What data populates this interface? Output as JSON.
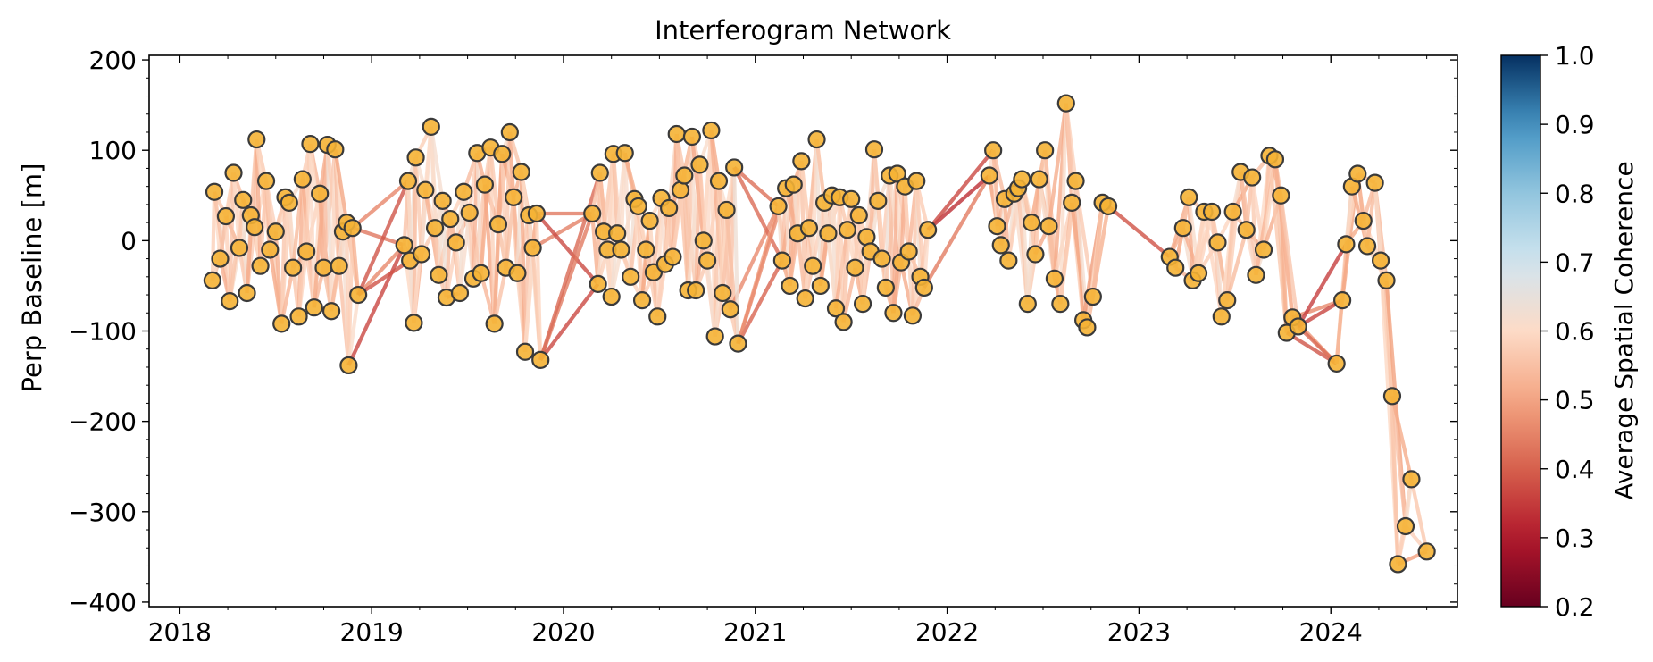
{
  "chart_data": {
    "type": "scatter",
    "title": "Interferogram Network",
    "xlabel": "",
    "ylabel": "Perp Baseline [m]",
    "x_unit": "year",
    "xlim": [
      2017.84,
      2024.66
    ],
    "ylim": [
      -405,
      205
    ],
    "x_ticks": [
      {
        "value": 2018,
        "label": "2018"
      },
      {
        "value": 2019,
        "label": "2019"
      },
      {
        "value": 2020,
        "label": "2020"
      },
      {
        "value": 2021,
        "label": "2021"
      },
      {
        "value": 2022,
        "label": "2022"
      },
      {
        "value": 2023,
        "label": "2023"
      },
      {
        "value": 2024,
        "label": "2024"
      }
    ],
    "y_ticks": [
      {
        "value": 200,
        "label": "200"
      },
      {
        "value": 100,
        "label": "100"
      },
      {
        "value": 0,
        "label": "0"
      },
      {
        "value": -100,
        "label": "−100"
      },
      {
        "value": -200,
        "label": "−200"
      },
      {
        "value": -300,
        "label": "−300"
      },
      {
        "value": -400,
        "label": "−400"
      }
    ],
    "grid": false,
    "marker_color": "#f5b335",
    "marker_edge_color": "#3a3a3a",
    "acquisitions": [
      {
        "x": 2018.17,
        "y": -44
      },
      {
        "x": 2018.18,
        "y": 54
      },
      {
        "x": 2018.21,
        "y": -20
      },
      {
        "x": 2018.24,
        "y": 27
      },
      {
        "x": 2018.26,
        "y": -67
      },
      {
        "x": 2018.28,
        "y": 75
      },
      {
        "x": 2018.31,
        "y": -8
      },
      {
        "x": 2018.33,
        "y": 45
      },
      {
        "x": 2018.35,
        "y": -58
      },
      {
        "x": 2018.37,
        "y": 28
      },
      {
        "x": 2018.39,
        "y": 15
      },
      {
        "x": 2018.4,
        "y": 112
      },
      {
        "x": 2018.42,
        "y": -28
      },
      {
        "x": 2018.45,
        "y": 66
      },
      {
        "x": 2018.47,
        "y": -10
      },
      {
        "x": 2018.5,
        "y": 10
      },
      {
        "x": 2018.53,
        "y": -92
      },
      {
        "x": 2018.55,
        "y": 48
      },
      {
        "x": 2018.57,
        "y": 42
      },
      {
        "x": 2018.59,
        "y": -30
      },
      {
        "x": 2018.62,
        "y": -84
      },
      {
        "x": 2018.64,
        "y": 68
      },
      {
        "x": 2018.66,
        "y": -12
      },
      {
        "x": 2018.68,
        "y": 107
      },
      {
        "x": 2018.7,
        "y": -74
      },
      {
        "x": 2018.73,
        "y": 52
      },
      {
        "x": 2018.75,
        "y": -30
      },
      {
        "x": 2018.77,
        "y": 106
      },
      {
        "x": 2018.79,
        "y": -78
      },
      {
        "x": 2018.81,
        "y": 101
      },
      {
        "x": 2018.83,
        "y": -28
      },
      {
        "x": 2018.85,
        "y": 10
      },
      {
        "x": 2018.87,
        "y": 20
      },
      {
        "x": 2018.88,
        "y": -138
      },
      {
        "x": 2018.9,
        "y": 14
      },
      {
        "x": 2018.93,
        "y": -60
      },
      {
        "x": 2019.17,
        "y": -5
      },
      {
        "x": 2019.19,
        "y": 66
      },
      {
        "x": 2019.2,
        "y": -22
      },
      {
        "x": 2019.22,
        "y": -91
      },
      {
        "x": 2019.23,
        "y": 92
      },
      {
        "x": 2019.26,
        "y": -15
      },
      {
        "x": 2019.28,
        "y": 56
      },
      {
        "x": 2019.31,
        "y": 126
      },
      {
        "x": 2019.33,
        "y": 14
      },
      {
        "x": 2019.35,
        "y": -38
      },
      {
        "x": 2019.37,
        "y": 44
      },
      {
        "x": 2019.39,
        "y": -63
      },
      {
        "x": 2019.41,
        "y": 24
      },
      {
        "x": 2019.44,
        "y": -2
      },
      {
        "x": 2019.46,
        "y": -58
      },
      {
        "x": 2019.48,
        "y": 54
      },
      {
        "x": 2019.51,
        "y": 31
      },
      {
        "x": 2019.53,
        "y": -42
      },
      {
        "x": 2019.55,
        "y": 97
      },
      {
        "x": 2019.57,
        "y": -36
      },
      {
        "x": 2019.59,
        "y": 62
      },
      {
        "x": 2019.62,
        "y": 103
      },
      {
        "x": 2019.64,
        "y": -92
      },
      {
        "x": 2019.66,
        "y": 18
      },
      {
        "x": 2019.68,
        "y": 96
      },
      {
        "x": 2019.7,
        "y": -30
      },
      {
        "x": 2019.72,
        "y": 120
      },
      {
        "x": 2019.74,
        "y": 48
      },
      {
        "x": 2019.76,
        "y": -36
      },
      {
        "x": 2019.78,
        "y": 76
      },
      {
        "x": 2019.8,
        "y": -123
      },
      {
        "x": 2019.82,
        "y": 28
      },
      {
        "x": 2019.84,
        "y": -8
      },
      {
        "x": 2019.86,
        "y": 30
      },
      {
        "x": 2019.88,
        "y": -132
      },
      {
        "x": 2020.15,
        "y": 30
      },
      {
        "x": 2020.18,
        "y": -48
      },
      {
        "x": 2020.19,
        "y": 75
      },
      {
        "x": 2020.21,
        "y": 10
      },
      {
        "x": 2020.23,
        "y": -10
      },
      {
        "x": 2020.25,
        "y": -62
      },
      {
        "x": 2020.26,
        "y": 96
      },
      {
        "x": 2020.28,
        "y": 8
      },
      {
        "x": 2020.3,
        "y": -10
      },
      {
        "x": 2020.32,
        "y": 97
      },
      {
        "x": 2020.35,
        "y": -40
      },
      {
        "x": 2020.37,
        "y": 46
      },
      {
        "x": 2020.39,
        "y": 38
      },
      {
        "x": 2020.41,
        "y": -66
      },
      {
        "x": 2020.43,
        "y": -10
      },
      {
        "x": 2020.45,
        "y": 22
      },
      {
        "x": 2020.47,
        "y": -35
      },
      {
        "x": 2020.49,
        "y": -84
      },
      {
        "x": 2020.51,
        "y": 47
      },
      {
        "x": 2020.53,
        "y": -26
      },
      {
        "x": 2020.55,
        "y": 36
      },
      {
        "x": 2020.57,
        "y": -18
      },
      {
        "x": 2020.59,
        "y": 118
      },
      {
        "x": 2020.61,
        "y": 56
      },
      {
        "x": 2020.63,
        "y": 72
      },
      {
        "x": 2020.65,
        "y": -55
      },
      {
        "x": 2020.67,
        "y": 115
      },
      {
        "x": 2020.69,
        "y": -55
      },
      {
        "x": 2020.71,
        "y": 84
      },
      {
        "x": 2020.73,
        "y": 0
      },
      {
        "x": 2020.75,
        "y": -22
      },
      {
        "x": 2020.77,
        "y": 122
      },
      {
        "x": 2020.79,
        "y": -106
      },
      {
        "x": 2020.81,
        "y": 66
      },
      {
        "x": 2020.83,
        "y": -58
      },
      {
        "x": 2020.85,
        "y": 34
      },
      {
        "x": 2020.87,
        "y": -76
      },
      {
        "x": 2020.89,
        "y": 81
      },
      {
        "x": 2020.91,
        "y": -114
      },
      {
        "x": 2021.12,
        "y": 38
      },
      {
        "x": 2021.14,
        "y": -22
      },
      {
        "x": 2021.16,
        "y": 58
      },
      {
        "x": 2021.18,
        "y": -50
      },
      {
        "x": 2021.2,
        "y": 62
      },
      {
        "x": 2021.22,
        "y": 8
      },
      {
        "x": 2021.24,
        "y": 88
      },
      {
        "x": 2021.26,
        "y": -64
      },
      {
        "x": 2021.28,
        "y": 14
      },
      {
        "x": 2021.3,
        "y": -28
      },
      {
        "x": 2021.32,
        "y": 112
      },
      {
        "x": 2021.34,
        "y": -50
      },
      {
        "x": 2021.36,
        "y": 42
      },
      {
        "x": 2021.38,
        "y": 8
      },
      {
        "x": 2021.4,
        "y": 50
      },
      {
        "x": 2021.42,
        "y": -75
      },
      {
        "x": 2021.44,
        "y": 48
      },
      {
        "x": 2021.46,
        "y": -90
      },
      {
        "x": 2021.48,
        "y": 12
      },
      {
        "x": 2021.5,
        "y": 46
      },
      {
        "x": 2021.52,
        "y": -30
      },
      {
        "x": 2021.54,
        "y": 28
      },
      {
        "x": 2021.56,
        "y": -70
      },
      {
        "x": 2021.58,
        "y": 4
      },
      {
        "x": 2021.6,
        "y": -12
      },
      {
        "x": 2021.62,
        "y": 101
      },
      {
        "x": 2021.64,
        "y": 44
      },
      {
        "x": 2021.66,
        "y": -20
      },
      {
        "x": 2021.68,
        "y": -52
      },
      {
        "x": 2021.7,
        "y": 72
      },
      {
        "x": 2021.72,
        "y": -80
      },
      {
        "x": 2021.74,
        "y": 74
      },
      {
        "x": 2021.76,
        "y": -24
      },
      {
        "x": 2021.78,
        "y": 60
      },
      {
        "x": 2021.8,
        "y": -12
      },
      {
        "x": 2021.82,
        "y": -83
      },
      {
        "x": 2021.84,
        "y": 66
      },
      {
        "x": 2021.86,
        "y": -40
      },
      {
        "x": 2021.88,
        "y": -52
      },
      {
        "x": 2021.9,
        "y": 12
      },
      {
        "x": 2022.22,
        "y": 72
      },
      {
        "x": 2022.24,
        "y": 100
      },
      {
        "x": 2022.26,
        "y": 16
      },
      {
        "x": 2022.28,
        "y": -5
      },
      {
        "x": 2022.3,
        "y": 46
      },
      {
        "x": 2022.32,
        "y": -22
      },
      {
        "x": 2022.35,
        "y": 52
      },
      {
        "x": 2022.37,
        "y": 58
      },
      {
        "x": 2022.39,
        "y": 68
      },
      {
        "x": 2022.42,
        "y": -70
      },
      {
        "x": 2022.44,
        "y": 20
      },
      {
        "x": 2022.46,
        "y": -15
      },
      {
        "x": 2022.48,
        "y": 68
      },
      {
        "x": 2022.51,
        "y": 100
      },
      {
        "x": 2022.53,
        "y": 16
      },
      {
        "x": 2022.56,
        "y": -42
      },
      {
        "x": 2022.59,
        "y": -70
      },
      {
        "x": 2022.62,
        "y": 152
      },
      {
        "x": 2022.65,
        "y": 42
      },
      {
        "x": 2022.67,
        "y": 66
      },
      {
        "x": 2022.71,
        "y": -88
      },
      {
        "x": 2022.73,
        "y": -96
      },
      {
        "x": 2022.76,
        "y": -62
      },
      {
        "x": 2022.81,
        "y": 42
      },
      {
        "x": 2022.84,
        "y": 38
      },
      {
        "x": 2023.16,
        "y": -18
      },
      {
        "x": 2023.19,
        "y": -30
      },
      {
        "x": 2023.23,
        "y": 14
      },
      {
        "x": 2023.26,
        "y": 48
      },
      {
        "x": 2023.28,
        "y": -44
      },
      {
        "x": 2023.31,
        "y": -36
      },
      {
        "x": 2023.34,
        "y": 32
      },
      {
        "x": 2023.38,
        "y": 32
      },
      {
        "x": 2023.41,
        "y": -2
      },
      {
        "x": 2023.43,
        "y": -84
      },
      {
        "x": 2023.46,
        "y": -66
      },
      {
        "x": 2023.49,
        "y": 32
      },
      {
        "x": 2023.53,
        "y": 76
      },
      {
        "x": 2023.56,
        "y": 12
      },
      {
        "x": 2023.59,
        "y": 70
      },
      {
        "x": 2023.61,
        "y": -38
      },
      {
        "x": 2023.65,
        "y": -10
      },
      {
        "x": 2023.68,
        "y": 94
      },
      {
        "x": 2023.71,
        "y": 90
      },
      {
        "x": 2023.74,
        "y": 50
      },
      {
        "x": 2023.77,
        "y": -102
      },
      {
        "x": 2023.8,
        "y": -85
      },
      {
        "x": 2023.83,
        "y": -95
      },
      {
        "x": 2024.03,
        "y": -136
      },
      {
        "x": 2024.06,
        "y": -66
      },
      {
        "x": 2024.08,
        "y": -4
      },
      {
        "x": 2024.11,
        "y": 60
      },
      {
        "x": 2024.14,
        "y": 74
      },
      {
        "x": 2024.17,
        "y": 22
      },
      {
        "x": 2024.19,
        "y": -6
      },
      {
        "x": 2024.23,
        "y": 64
      },
      {
        "x": 2024.26,
        "y": -22
      },
      {
        "x": 2024.29,
        "y": -44
      },
      {
        "x": 2024.32,
        "y": -172
      },
      {
        "x": 2024.35,
        "y": -358
      },
      {
        "x": 2024.39,
        "y": -316
      },
      {
        "x": 2024.42,
        "y": -264
      },
      {
        "x": 2024.5,
        "y": -344
      }
    ],
    "colorbar": {
      "label": "Average Spatial Coherence",
      "min": 0.2,
      "max": 1.0,
      "palette": "RdBu",
      "ticks": [
        {
          "value": 1.0,
          "label": "1.0"
        },
        {
          "value": 0.9,
          "label": "0.9"
        },
        {
          "value": 0.8,
          "label": "0.8"
        },
        {
          "value": 0.7,
          "label": "0.7"
        },
        {
          "value": 0.6,
          "label": "0.6"
        },
        {
          "value": 0.5,
          "label": "0.5"
        },
        {
          "value": 0.4,
          "label": "0.4"
        },
        {
          "value": 0.3,
          "label": "0.3"
        },
        {
          "value": 0.2,
          "label": "0.2"
        }
      ],
      "unused_above": 0.7
    },
    "notes_hidden": ""
  }
}
